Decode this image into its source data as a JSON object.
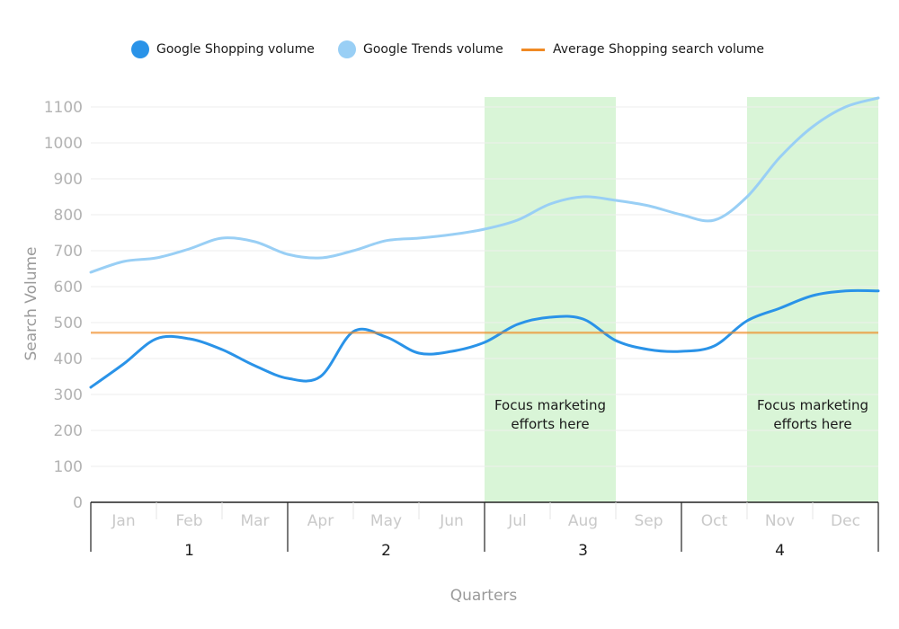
{
  "chart_data": {
    "type": "line",
    "xlabel": "Quarters",
    "ylabel": "Search Volume",
    "ylim": [
      0,
      1100
    ],
    "yticks": [
      0,
      100,
      200,
      300,
      400,
      500,
      600,
      700,
      800,
      900,
      1000,
      1100
    ],
    "categories": [
      "Jan",
      "Feb",
      "Mar",
      "Apr",
      "May",
      "Jun",
      "Jul",
      "Aug",
      "Sep",
      "Oct",
      "Nov",
      "Dec"
    ],
    "quarters": [
      {
        "label": "1",
        "months": [
          "Jan",
          "Feb",
          "Mar"
        ]
      },
      {
        "label": "2",
        "months": [
          "Apr",
          "May",
          "Jun"
        ]
      },
      {
        "label": "3",
        "months": [
          "Jul",
          "Aug",
          "Sep"
        ]
      },
      {
        "label": "4",
        "months": [
          "Oct",
          "Nov",
          "Dec"
        ]
      }
    ],
    "series": [
      {
        "name": "Google Shopping volume",
        "color": "#2a93e8",
        "points": [
          [
            0,
            320
          ],
          [
            0.5,
            385
          ],
          [
            1,
            455
          ],
          [
            1.5,
            455
          ],
          [
            2,
            425
          ],
          [
            2.5,
            380
          ],
          [
            3,
            345
          ],
          [
            3.5,
            350
          ],
          [
            4,
            475
          ],
          [
            4.5,
            460
          ],
          [
            5,
            415
          ],
          [
            5.5,
            420
          ],
          [
            6,
            445
          ],
          [
            6.5,
            495
          ],
          [
            7,
            515
          ],
          [
            7.5,
            510
          ],
          [
            8,
            450
          ],
          [
            8.5,
            425
          ],
          [
            9,
            420
          ],
          [
            9.5,
            435
          ],
          [
            10,
            505
          ],
          [
            10.5,
            540
          ],
          [
            11,
            575
          ],
          [
            11.5,
            588
          ],
          [
            12,
            588
          ]
        ]
      },
      {
        "name": "Google Trends volume",
        "color": "#99cff5",
        "points": [
          [
            0,
            640
          ],
          [
            0.5,
            670
          ],
          [
            1,
            680
          ],
          [
            1.5,
            705
          ],
          [
            2,
            735
          ],
          [
            2.5,
            725
          ],
          [
            3,
            690
          ],
          [
            3.5,
            680
          ],
          [
            4,
            700
          ],
          [
            4.5,
            728
          ],
          [
            5,
            735
          ],
          [
            5.5,
            745
          ],
          [
            6,
            760
          ],
          [
            6.5,
            785
          ],
          [
            7,
            830
          ],
          [
            7.5,
            850
          ],
          [
            8,
            840
          ],
          [
            8.5,
            825
          ],
          [
            9,
            800
          ],
          [
            9.5,
            785
          ],
          [
            10,
            850
          ],
          [
            10.5,
            960
          ],
          [
            11,
            1045
          ],
          [
            11.5,
            1100
          ],
          [
            12,
            1125
          ]
        ]
      },
      {
        "name": "Average Shopping search volume",
        "color": "#f08a24",
        "type": "hline",
        "value": 472
      }
    ],
    "highlights": [
      {
        "from": "Jul",
        "to": "Aug",
        "label": [
          "Focus marketing",
          "efforts here"
        ]
      },
      {
        "from": "Nov",
        "to": "Dec",
        "label": [
          "Focus marketing",
          "efforts here"
        ]
      }
    ],
    "legend_position": "top",
    "grid": true
  },
  "colors": {
    "highlight": "#d9f5d7",
    "grid": "#eeeeee",
    "axis": "#222222"
  }
}
